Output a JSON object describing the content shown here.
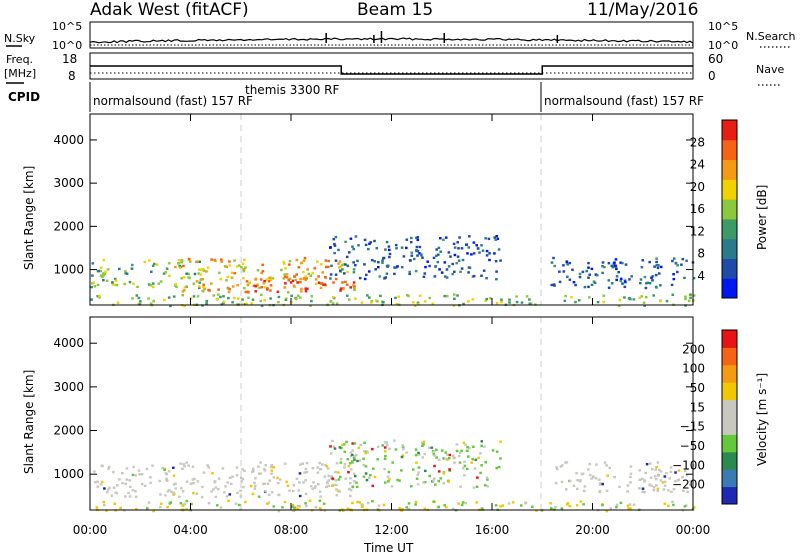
{
  "header": {
    "radar": "Adak West (fitACF)",
    "beam": "Beam 15",
    "date": "11/May/2016"
  },
  "top_panels": {
    "nsky_label": "N.Sky",
    "nsky_ticks": [
      "10^5",
      "10^0"
    ],
    "nsearch_label": "N.Search",
    "nsearch_ticks": [
      "10^5",
      "10^0"
    ],
    "freq_label": "Freq.",
    "freq_unit": "[MHz]",
    "freq_ticks": [
      "18",
      "8"
    ],
    "nave_label": "Nave",
    "nave_ticks": [
      "60",
      "0"
    ],
    "cpid_label": "CPID",
    "cpid_segments": [
      {
        "label": "normalsound (fast) 157 RF",
        "start_hour": 0,
        "end_hour": 6
      },
      {
        "label": "themis 3300 RF",
        "start_hour": 6,
        "end_hour": 18
      },
      {
        "label": "normalsound (fast) 157 RF",
        "start_hour": 18,
        "end_hour": 24
      }
    ],
    "freq_profile_mhz": [
      {
        "from": 0,
        "to": 10,
        "value": 14.5
      },
      {
        "from": 10,
        "to": 18,
        "value": 10.5
      },
      {
        "from": 18,
        "to": 24,
        "value": 14.5
      }
    ]
  },
  "chart_data": [
    {
      "type": "heatmap",
      "panel": "power",
      "ylabel": "Slant Range [km]",
      "yticks": [
        "1000",
        "2000",
        "3000",
        "4000"
      ],
      "ylim": [
        180,
        4600
      ],
      "xlim": [
        0,
        24
      ],
      "colorbar_label": "Power [dB]",
      "colorbar_ticks": [
        "4",
        "8",
        "12",
        "16",
        "20",
        "24",
        "28"
      ],
      "colorbar_colors": [
        "#0018f0",
        "#1e4aa8",
        "#2a7a8a",
        "#3c9a64",
        "#8cc83c",
        "#f0d200",
        "#f59a14",
        "#f56414",
        "#e61e14"
      ],
      "echo_regions": [
        {
          "t0": 0.0,
          "t1": 4.5,
          "r0": 600,
          "r1": 1250,
          "level": "mid"
        },
        {
          "t0": 3.3,
          "t1": 10.5,
          "r0": 500,
          "r1": 1300,
          "level": "high"
        },
        {
          "t0": 6.5,
          "t1": 10.5,
          "r0": 500,
          "r1": 900,
          "level": "very-high"
        },
        {
          "t0": 9.5,
          "t1": 16.3,
          "r0": 800,
          "r1": 1800,
          "level": "low"
        },
        {
          "t0": 18.3,
          "t1": 24.0,
          "r0": 600,
          "r1": 1300,
          "level": "low"
        },
        {
          "t0": 0.0,
          "t1": 24.0,
          "r0": 180,
          "r1": 450,
          "level": "ground"
        }
      ]
    },
    {
      "type": "heatmap",
      "panel": "velocity",
      "ylabel": "Slant Range [km]",
      "yticks": [
        "1000",
        "2000",
        "3000",
        "4000"
      ],
      "ylim": [
        180,
        4600
      ],
      "xlim": [
        0,
        24
      ],
      "colorbar_label": "Velocity [m s⁻¹]",
      "colorbar_ticks": [
        "200",
        "100",
        "50",
        "15",
        "−15",
        "−50",
        "−100",
        "−200"
      ],
      "colorbar_colors": [
        "#1e28b4",
        "#3c7ab4",
        "#2a8a50",
        "#64c83c",
        "#c8c8c0",
        "#c8c8c0",
        "#f0c800",
        "#f59a14",
        "#f56414",
        "#e61414"
      ],
      "echo_regions": [
        {
          "t0": 0.0,
          "t1": 10.5,
          "r0": 500,
          "r1": 1300,
          "level": "near-zero"
        },
        {
          "t0": 9.5,
          "t1": 16.3,
          "r0": 700,
          "r1": 1800,
          "level": "mixed"
        },
        {
          "t0": 18.3,
          "t1": 24.0,
          "r0": 600,
          "r1": 1300,
          "level": "near-zero"
        },
        {
          "t0": 0.0,
          "t1": 24.0,
          "r0": 180,
          "r1": 420,
          "level": "ground"
        }
      ]
    }
  ],
  "xaxis": {
    "ticks": [
      "00:00",
      "04:00",
      "08:00",
      "12:00",
      "16:00",
      "20:00",
      "00:00"
    ],
    "label": "Time UT"
  }
}
